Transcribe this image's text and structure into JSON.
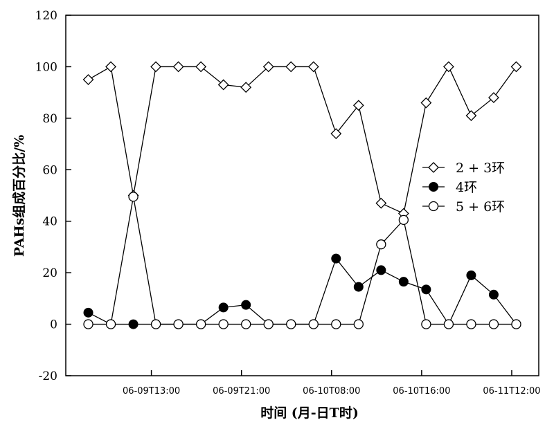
{
  "chart_data": {
    "type": "line",
    "title": "",
    "xlabel": "时间 (月-日T时)",
    "ylabel": "PAHs组成百分比/%",
    "ylim": [
      -20,
      120
    ],
    "yticks": [
      -20,
      0,
      20,
      40,
      60,
      80,
      100,
      120
    ],
    "x": [
      1,
      2,
      3,
      4,
      5,
      6,
      7,
      8,
      9,
      10,
      11,
      12,
      13,
      14,
      15,
      16,
      17,
      18,
      19,
      20
    ],
    "xlim": [
      0,
      21
    ],
    "xtick_labels": [
      {
        "x": 3.8,
        "label": "06-09T13:00"
      },
      {
        "x": 7.8,
        "label": "06-09T21:00"
      },
      {
        "x": 11.8,
        "label": "06-10T08:00"
      },
      {
        "x": 15.8,
        "label": "06-10T16:00"
      },
      {
        "x": 19.8,
        "label": "06-11T12:00"
      }
    ],
    "grid": false,
    "legend": "center-right",
    "series": [
      {
        "name": "2 + 3环",
        "marker": "diamond-open",
        "values": [
          95,
          100,
          50,
          100,
          100,
          100,
          93,
          92,
          100,
          100,
          100,
          74,
          85,
          47,
          43,
          86,
          100,
          81,
          88,
          100
        ]
      },
      {
        "name": "4环",
        "marker": "circle-filled",
        "values": [
          4.5,
          0,
          0,
          0,
          0,
          0,
          6.5,
          7.5,
          0,
          0,
          0,
          25.5,
          14.5,
          21,
          16.5,
          13.5,
          0,
          19,
          11.5,
          0
        ]
      },
      {
        "name": "5 + 6环",
        "marker": "circle-open",
        "values": [
          0,
          0,
          49.5,
          0,
          0,
          0,
          0,
          0,
          0,
          0,
          0,
          0,
          0,
          31,
          40.5,
          0,
          0,
          0,
          0,
          0
        ]
      }
    ]
  }
}
